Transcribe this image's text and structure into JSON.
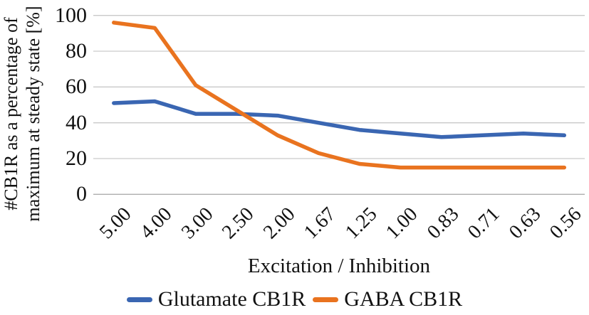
{
  "chart_data": {
    "type": "line",
    "title": "",
    "xlabel": "Excitation / Inhibition",
    "ylabel_line1": "#CB1R as a percentage of",
    "ylabel_line2": "maximum at steady state [%]",
    "categories": [
      "5.00",
      "4.00",
      "3.00",
      "2.50",
      "2.00",
      "1.67",
      "1.25",
      "1.00",
      "0.83",
      "0.71",
      "0.63",
      "0.56"
    ],
    "yticks": [
      "0",
      "20",
      "40",
      "60",
      "80",
      "100"
    ],
    "ylim": [
      0,
      100
    ],
    "grid": true,
    "legend_position": "bottom",
    "series": [
      {
        "name": "Glutamate CB1R",
        "color": "#3A66B2",
        "values": [
          51,
          52,
          45,
          45,
          44,
          40,
          36,
          34,
          32,
          33,
          34,
          33
        ]
      },
      {
        "name": "GABA CB1R",
        "color": "#E9731F",
        "values": [
          96,
          93,
          61,
          47,
          33,
          23,
          17,
          15,
          15,
          15,
          15,
          15
        ]
      }
    ]
  },
  "colors": {
    "gridline": "#C9C9C9",
    "axisline": "#ADADAD",
    "text": "#111111",
    "background": "#FFFFFF"
  }
}
